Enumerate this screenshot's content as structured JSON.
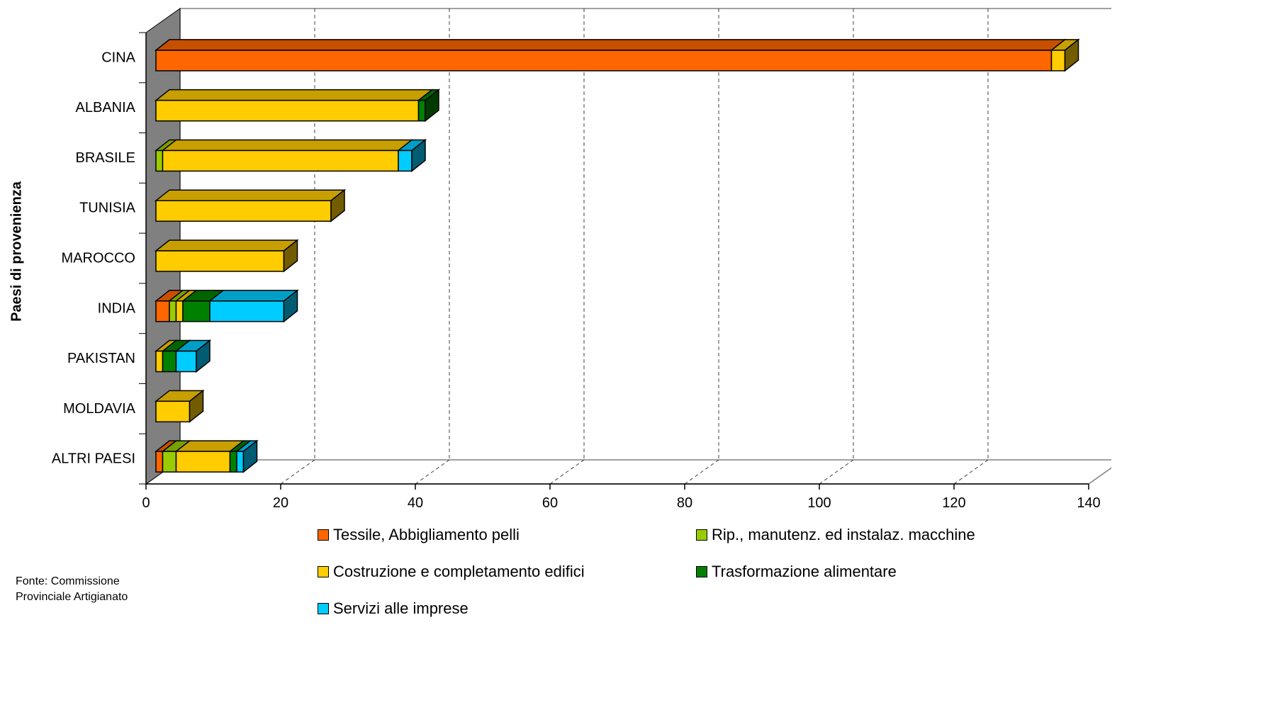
{
  "chart_data": {
    "type": "bar",
    "orientation": "horizontal",
    "stacked": true,
    "style_3d": true,
    "ylabel": "Paesi di provenienza",
    "categories": [
      "CINA",
      "ALBANIA",
      "BRASILE",
      "TUNISIA",
      "MAROCCO",
      "INDIA",
      "PAKISTAN",
      "MOLDAVIA",
      "ALTRI PAESI"
    ],
    "series": [
      {
        "name": "Tessile, Abbigliamento pelli",
        "color": "#FF6600",
        "values": [
          133,
          0,
          0,
          0,
          0,
          2,
          0,
          0,
          1
        ]
      },
      {
        "name": "Rip., manutenz. ed instalaz. macchine",
        "color": "#99CC00",
        "values": [
          0,
          0,
          1,
          0,
          0,
          1,
          0,
          0,
          2
        ]
      },
      {
        "name": "Costruzione e completamento edifici",
        "color": "#FFCC00",
        "values": [
          2,
          39,
          35,
          26,
          19,
          1,
          1,
          5,
          8
        ]
      },
      {
        "name": "Trasformazione alimentare",
        "color": "#008000",
        "values": [
          0,
          1,
          0,
          0,
          0,
          4,
          2,
          0,
          1
        ]
      },
      {
        "name": "Servizi alle imprese",
        "color": "#00CCFF",
        "values": [
          0,
          0,
          2,
          0,
          0,
          11,
          3,
          0,
          1
        ]
      }
    ],
    "xlim": [
      0,
      140
    ],
    "xticks": [
      "0",
      "20",
      "40",
      "60",
      "80",
      "100",
      "120",
      "140"
    ],
    "grid": "dashed vertical",
    "legend_position": "bottom"
  },
  "source": {
    "line1": "Fonte: Commissione",
    "line2": "Provinciale Artigianato"
  }
}
